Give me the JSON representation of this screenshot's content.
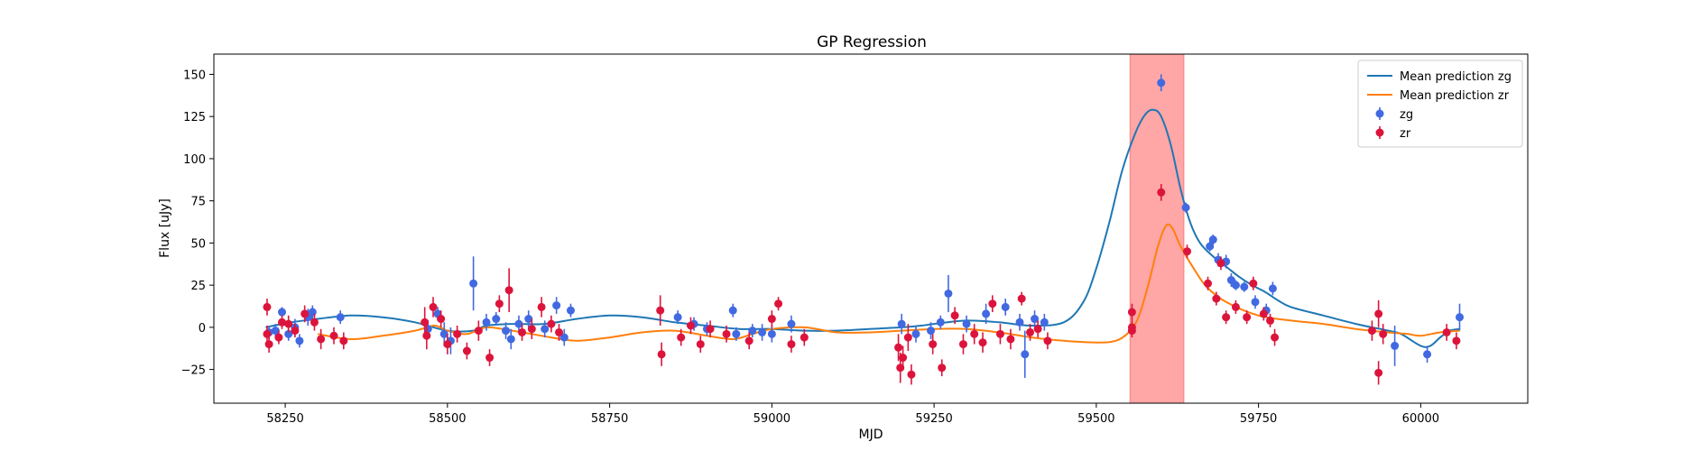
{
  "chart_data": {
    "type": "scatter",
    "title": "GP Regression",
    "xlabel": "MJD",
    "ylabel": "Flux [uJy]",
    "xlim": [
      58140,
      60165
    ],
    "ylim": [
      -45,
      162
    ],
    "xticks": [
      58250,
      58500,
      58750,
      59000,
      59250,
      59500,
      59750,
      60000
    ],
    "xtick_labels": [
      "58250",
      "58500",
      "58750",
      "59000",
      "59250",
      "59500",
      "59750",
      "60000"
    ],
    "yticks": [
      -25,
      0,
      25,
      50,
      75,
      100,
      125,
      150
    ],
    "ytick_labels": [
      "−25",
      "0",
      "25",
      "50",
      "75",
      "100",
      "125",
      "150"
    ],
    "grid": false,
    "legend_placement": "top-right",
    "highlight_span": {
      "x0": 59552,
      "x1": 59635,
      "color": "#ff6b6b"
    },
    "colors": {
      "zg_line": "#1f77b4",
      "zr_line": "#ff7f0e",
      "zg_points": "#4169e1",
      "zr_points": "#dc143c",
      "span": "#ff6b6b"
    },
    "legend": [
      {
        "label": "Mean prediction zg",
        "kind": "line",
        "color": "#1f77b4"
      },
      {
        "label": "Mean prediction zr",
        "kind": "line",
        "color": "#ff7f0e"
      },
      {
        "label": "zg",
        "kind": "errorbar",
        "color": "#4169e1"
      },
      {
        "label": "zr",
        "kind": "errorbar",
        "color": "#dc143c"
      }
    ],
    "series": [
      {
        "name": "Mean prediction zg",
        "kind": "line",
        "color": "#1f77b4",
        "points": [
          [
            58220,
            0
          ],
          [
            58260,
            3
          ],
          [
            58300,
            5
          ],
          [
            58350,
            7
          ],
          [
            58400,
            6
          ],
          [
            58450,
            3
          ],
          [
            58500,
            -2
          ],
          [
            58540,
            -2
          ],
          [
            58560,
            1
          ],
          [
            58600,
            2
          ],
          [
            58650,
            2
          ],
          [
            58700,
            5
          ],
          [
            58750,
            7
          ],
          [
            58800,
            6
          ],
          [
            58850,
            3
          ],
          [
            58900,
            1
          ],
          [
            58950,
            -1
          ],
          [
            59000,
            -1
          ],
          [
            59050,
            -2
          ],
          [
            59100,
            -2
          ],
          [
            59150,
            -1
          ],
          [
            59200,
            0
          ],
          [
            59230,
            1
          ],
          [
            59250,
            2
          ],
          [
            59300,
            4
          ],
          [
            59350,
            3
          ],
          [
            59400,
            1
          ],
          [
            59450,
            3
          ],
          [
            59480,
            15
          ],
          [
            59500,
            35
          ],
          [
            59520,
            62
          ],
          [
            59540,
            93
          ],
          [
            59560,
            115
          ],
          [
            59575,
            126
          ],
          [
            59588,
            129
          ],
          [
            59600,
            125
          ],
          [
            59615,
            108
          ],
          [
            59630,
            82
          ],
          [
            59645,
            62
          ],
          [
            59660,
            50
          ],
          [
            59680,
            42
          ],
          [
            59700,
            36
          ],
          [
            59720,
            30
          ],
          [
            59740,
            25
          ],
          [
            59760,
            21
          ],
          [
            59780,
            16
          ],
          [
            59800,
            12
          ],
          [
            59850,
            7
          ],
          [
            59900,
            2
          ],
          [
            59950,
            -2
          ],
          [
            59970,
            -4
          ],
          [
            60000,
            -11
          ],
          [
            60015,
            -11
          ],
          [
            60030,
            -6
          ],
          [
            60045,
            -2
          ],
          [
            60060,
            -1
          ]
        ]
      },
      {
        "name": "Mean prediction zr",
        "kind": "line",
        "color": "#ff7f0e",
        "points": [
          [
            58300,
            -4
          ],
          [
            58350,
            -7
          ],
          [
            58400,
            -5
          ],
          [
            58450,
            -2
          ],
          [
            58480,
            1
          ],
          [
            58500,
            -2
          ],
          [
            58530,
            -4
          ],
          [
            58560,
            0
          ],
          [
            58600,
            -2
          ],
          [
            58630,
            -4
          ],
          [
            58660,
            -6
          ],
          [
            58700,
            -8
          ],
          [
            58750,
            -6
          ],
          [
            58800,
            -3
          ],
          [
            58850,
            -2
          ],
          [
            58900,
            -5
          ],
          [
            58940,
            -7
          ],
          [
            58970,
            -4
          ],
          [
            59000,
            -1
          ],
          [
            59050,
            0
          ],
          [
            59100,
            -3
          ],
          [
            59150,
            -3
          ],
          [
            59200,
            -2
          ],
          [
            59250,
            -1
          ],
          [
            59300,
            -1
          ],
          [
            59350,
            -3
          ],
          [
            59400,
            -6
          ],
          [
            59450,
            -8
          ],
          [
            59500,
            -9
          ],
          [
            59530,
            -8
          ],
          [
            59550,
            -3
          ],
          [
            59565,
            6
          ],
          [
            59580,
            25
          ],
          [
            59595,
            48
          ],
          [
            59607,
            60
          ],
          [
            59617,
            59
          ],
          [
            59630,
            48
          ],
          [
            59650,
            35
          ],
          [
            59670,
            24
          ],
          [
            59700,
            15
          ],
          [
            59750,
            7
          ],
          [
            59800,
            4
          ],
          [
            59850,
            2
          ],
          [
            59900,
            -1
          ],
          [
            59950,
            -3
          ],
          [
            59980,
            -4
          ],
          [
            60000,
            -5
          ],
          [
            60030,
            -3
          ],
          [
            60060,
            -2
          ]
        ]
      },
      {
        "name": "zg",
        "kind": "errorbar",
        "color": "#4169e1",
        "points": [
          [
            58225,
            -3,
            4
          ],
          [
            58235,
            -2,
            4
          ],
          [
            58245,
            9,
            3
          ],
          [
            58255,
            -4,
            4
          ],
          [
            58265,
            0,
            5
          ],
          [
            58272,
            -8,
            4
          ],
          [
            58285,
            6,
            5
          ],
          [
            58292,
            9,
            4
          ],
          [
            58335,
            6,
            4
          ],
          [
            58470,
            -1,
            5
          ],
          [
            58485,
            8,
            4
          ],
          [
            58495,
            -4,
            7
          ],
          [
            58505,
            -8,
            8
          ],
          [
            58540,
            26,
            16
          ],
          [
            58560,
            3,
            5
          ],
          [
            58575,
            5,
            4
          ],
          [
            58590,
            -2,
            5
          ],
          [
            58598,
            -7,
            6
          ],
          [
            58610,
            2,
            5
          ],
          [
            58625,
            5,
            5
          ],
          [
            58650,
            -1,
            5
          ],
          [
            58668,
            13,
            5
          ],
          [
            58680,
            -6,
            5
          ],
          [
            58690,
            10,
            4
          ],
          [
            58855,
            6,
            4
          ],
          [
            58880,
            2,
            4
          ],
          [
            58900,
            -1,
            4
          ],
          [
            58940,
            10,
            4
          ],
          [
            58945,
            -4,
            4
          ],
          [
            58970,
            -2,
            4
          ],
          [
            58985,
            -3,
            5
          ],
          [
            59000,
            -4,
            5
          ],
          [
            59030,
            2,
            5
          ],
          [
            59200,
            2,
            6
          ],
          [
            59222,
            -4,
            5
          ],
          [
            59245,
            -2,
            5
          ],
          [
            59260,
            3,
            4
          ],
          [
            59272,
            20,
            11
          ],
          [
            59300,
            2,
            5
          ],
          [
            59330,
            8,
            6
          ],
          [
            59360,
            12,
            5
          ],
          [
            59382,
            3,
            5
          ],
          [
            59390,
            -16,
            14
          ],
          [
            59405,
            5,
            5
          ],
          [
            59420,
            3,
            5
          ],
          [
            59600,
            145,
            5
          ],
          [
            59638,
            71,
            3
          ],
          [
            59675,
            48,
            3
          ],
          [
            59680,
            52,
            3
          ],
          [
            59688,
            40,
            4
          ],
          [
            59700,
            39,
            4
          ],
          [
            59708,
            28,
            4
          ],
          [
            59715,
            25,
            3
          ],
          [
            59728,
            24,
            3
          ],
          [
            59745,
            15,
            4
          ],
          [
            59762,
            10,
            4
          ],
          [
            59772,
            23,
            4
          ],
          [
            59960,
            -11,
            12
          ],
          [
            60010,
            -16,
            5
          ],
          [
            60060,
            6,
            8
          ]
        ]
      },
      {
        "name": "zr",
        "kind": "errorbar",
        "color": "#dc143c",
        "points": [
          [
            58222,
            12,
            5
          ],
          [
            58222,
            -4,
            5
          ],
          [
            58225,
            -10,
            5
          ],
          [
            58240,
            -6,
            4
          ],
          [
            58245,
            3,
            4
          ],
          [
            58255,
            2,
            5
          ],
          [
            58265,
            -2,
            4
          ],
          [
            58280,
            8,
            5
          ],
          [
            58295,
            3,
            5
          ],
          [
            58305,
            -7,
            6
          ],
          [
            58325,
            -5,
            5
          ],
          [
            58340,
            -8,
            5
          ],
          [
            58465,
            3,
            9
          ],
          [
            58468,
            -5,
            8
          ],
          [
            58478,
            12,
            6
          ],
          [
            58490,
            5,
            5
          ],
          [
            58500,
            -10,
            6
          ],
          [
            58515,
            -4,
            5
          ],
          [
            58530,
            -14,
            5
          ],
          [
            58548,
            -2,
            6
          ],
          [
            58565,
            -18,
            5
          ],
          [
            58580,
            14,
            5
          ],
          [
            58595,
            22,
            13
          ],
          [
            58615,
            -3,
            5
          ],
          [
            58630,
            -1,
            6
          ],
          [
            58645,
            12,
            6
          ],
          [
            58660,
            2,
            5
          ],
          [
            58672,
            -3,
            5
          ],
          [
            58828,
            10,
            9
          ],
          [
            58830,
            -16,
            7
          ],
          [
            58860,
            -6,
            5
          ],
          [
            58875,
            1,
            5
          ],
          [
            58890,
            -10,
            5
          ],
          [
            58905,
            -1,
            5
          ],
          [
            58930,
            -4,
            5
          ],
          [
            58965,
            -8,
            5
          ],
          [
            59000,
            5,
            5
          ],
          [
            59010,
            14,
            4
          ],
          [
            59030,
            -10,
            5
          ],
          [
            59050,
            -6,
            5
          ],
          [
            59195,
            -12,
            8
          ],
          [
            59198,
            -24,
            9
          ],
          [
            59202,
            -18,
            7
          ],
          [
            59210,
            -6,
            8
          ],
          [
            59215,
            -28,
            6
          ],
          [
            59248,
            -10,
            6
          ],
          [
            59262,
            -24,
            5
          ],
          [
            59282,
            7,
            5
          ],
          [
            59295,
            -10,
            6
          ],
          [
            59312,
            -4,
            6
          ],
          [
            59325,
            -9,
            6
          ],
          [
            59340,
            14,
            5
          ],
          [
            59352,
            -4,
            6
          ],
          [
            59368,
            -7,
            6
          ],
          [
            59385,
            17,
            4
          ],
          [
            59398,
            -3,
            5
          ],
          [
            59410,
            -1,
            5
          ],
          [
            59425,
            -8,
            5
          ],
          [
            59555,
            9,
            5
          ],
          [
            59555,
            0,
            4
          ],
          [
            59555,
            -2,
            4
          ],
          [
            59600,
            80,
            5
          ],
          [
            59640,
            45,
            4
          ],
          [
            59672,
            26,
            4
          ],
          [
            59685,
            17,
            4
          ],
          [
            59692,
            38,
            4
          ],
          [
            59700,
            6,
            4
          ],
          [
            59715,
            12,
            4
          ],
          [
            59732,
            6,
            4
          ],
          [
            59742,
            26,
            4
          ],
          [
            59758,
            8,
            4
          ],
          [
            59768,
            4,
            4
          ],
          [
            59775,
            -6,
            5
          ],
          [
            59925,
            -2,
            6
          ],
          [
            59935,
            8,
            8
          ],
          [
            59935,
            -27,
            7
          ],
          [
            59942,
            -4,
            6
          ],
          [
            60040,
            -3,
            5
          ],
          [
            60055,
            -8,
            5
          ]
        ]
      }
    ]
  }
}
